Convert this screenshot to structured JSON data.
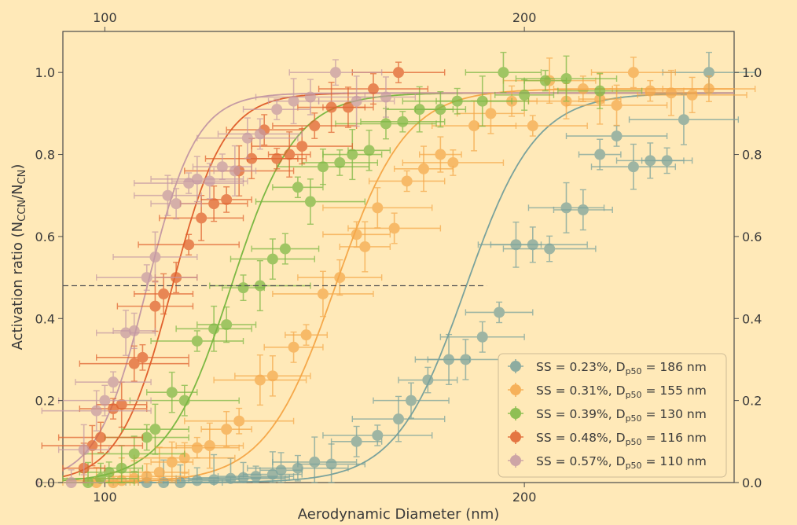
{
  "chart_data": {
    "type": "scatter",
    "xlabel": "Aerodynamic Diameter (nm)",
    "ylabel_main": "Activation ratio (N",
    "ylabel_sub1": "CCN",
    "ylabel_mid": "/N",
    "ylabel_sub2": "CN",
    "ylabel_end": ")",
    "xlim": [
      90,
      250
    ],
    "ylim": [
      0,
      1.1
    ],
    "xticks": [
      100,
      200
    ],
    "yticks": [
      0.0,
      0.2,
      0.4,
      0.6,
      0.8,
      1.0
    ],
    "ytick_labels": [
      "0.0",
      "0.2",
      "0.4",
      "0.6",
      "0.8",
      "1.0"
    ],
    "threshold_line": {
      "y": 0.48,
      "x_end": 191
    },
    "legend_placement": "lower-right",
    "series": [
      {
        "name": "SS = 0.23%, D",
        "dp_sub": "p50",
        "dp_text": " = 186 nm",
        "color": "#7aa29c",
        "d50": 186,
        "k": 0.12,
        "max": 0.95,
        "points": [
          [
            110,
            0
          ],
          [
            114,
            0
          ],
          [
            118,
            0
          ],
          [
            122,
            0.005
          ],
          [
            126,
            0.007
          ],
          [
            130,
            0.01
          ],
          [
            133,
            0.012
          ],
          [
            136,
            0.015
          ],
          [
            140,
            0.02
          ],
          [
            142,
            0.03
          ],
          [
            146,
            0.035
          ],
          [
            150,
            0.05
          ],
          [
            154,
            0.045
          ],
          [
            160,
            0.1
          ],
          [
            165,
            0.115
          ],
          [
            170,
            0.155
          ],
          [
            173,
            0.2
          ],
          [
            177,
            0.25
          ],
          [
            182,
            0.3
          ],
          [
            186,
            0.3
          ],
          [
            190,
            0.355
          ],
          [
            194,
            0.415
          ],
          [
            198,
            0.58
          ],
          [
            202,
            0.58
          ],
          [
            206,
            0.57
          ],
          [
            210,
            0.67
          ],
          [
            214,
            0.665
          ],
          [
            218,
            0.8
          ],
          [
            222,
            0.845
          ],
          [
            226,
            0.77
          ],
          [
            230,
            0.785
          ],
          [
            234,
            0.785
          ],
          [
            238,
            0.885
          ],
          [
            244,
            1.0
          ]
        ]
      },
      {
        "name": "SS = 0.31%, D",
        "dp_sub": "p50",
        "dp_text": " = 155 nm",
        "color": "#f5a84a",
        "d50": 155,
        "k": 0.12,
        "max": 0.96,
        "points": [
          [
            98,
            0
          ],
          [
            102,
            0
          ],
          [
            104,
            0.005
          ],
          [
            107,
            0.01
          ],
          [
            110,
            0.015
          ],
          [
            113,
            0.025
          ],
          [
            116,
            0.05
          ],
          [
            119,
            0.06
          ],
          [
            122,
            0.085
          ],
          [
            125,
            0.09
          ],
          [
            129,
            0.13
          ],
          [
            132,
            0.15
          ],
          [
            137,
            0.25
          ],
          [
            140,
            0.26
          ],
          [
            145,
            0.33
          ],
          [
            148,
            0.36
          ],
          [
            152,
            0.46
          ],
          [
            156,
            0.5
          ],
          [
            160,
            0.605
          ],
          [
            162,
            0.575
          ],
          [
            165,
            0.67
          ],
          [
            169,
            0.62
          ],
          [
            172,
            0.735
          ],
          [
            176,
            0.765
          ],
          [
            180,
            0.8
          ],
          [
            183,
            0.78
          ],
          [
            188,
            0.87
          ],
          [
            192,
            0.9
          ],
          [
            197,
            0.93
          ],
          [
            202,
            0.87
          ],
          [
            206,
            0.98
          ],
          [
            210,
            0.93
          ],
          [
            214,
            0.96
          ],
          [
            218,
            0.935
          ],
          [
            222,
            0.92
          ],
          [
            226,
            1.0
          ],
          [
            230,
            0.955
          ],
          [
            235,
            0.95
          ],
          [
            240,
            0.945
          ],
          [
            244,
            0.96
          ]
        ]
      },
      {
        "name": "SS = 0.39%, D",
        "dp_sub": "p50",
        "dp_text": " = 130 nm",
        "color": "#7cb843",
        "d50": 130,
        "k": 0.13,
        "max": 0.95,
        "points": [
          [
            96,
            0
          ],
          [
            99,
            0.01
          ],
          [
            101,
            0.025
          ],
          [
            104,
            0.035
          ],
          [
            107,
            0.07
          ],
          [
            110,
            0.11
          ],
          [
            112,
            0.13
          ],
          [
            116,
            0.22
          ],
          [
            119,
            0.2
          ],
          [
            122,
            0.345
          ],
          [
            126,
            0.375
          ],
          [
            129,
            0.385
          ],
          [
            133,
            0.475
          ],
          [
            137,
            0.48
          ],
          [
            140,
            0.545
          ],
          [
            143,
            0.57
          ],
          [
            146,
            0.72
          ],
          [
            149,
            0.685
          ],
          [
            152,
            0.77
          ],
          [
            156,
            0.78
          ],
          [
            159,
            0.8
          ],
          [
            163,
            0.81
          ],
          [
            167,
            0.875
          ],
          [
            171,
            0.88
          ],
          [
            175,
            0.91
          ],
          [
            180,
            0.91
          ],
          [
            184,
            0.93
          ],
          [
            190,
            0.93
          ],
          [
            195,
            1.0
          ],
          [
            200,
            0.945
          ],
          [
            205,
            0.98
          ],
          [
            210,
            0.985
          ],
          [
            218,
            0.955
          ]
        ]
      },
      {
        "name": "SS = 0.48%, D",
        "dp_sub": "p50",
        "dp_text": " = 116 nm",
        "color": "#e0612e",
        "d50": 116,
        "k": 0.16,
        "max": 0.95,
        "points": [
          [
            95,
            0.035
          ],
          [
            97,
            0.09
          ],
          [
            99,
            0.11
          ],
          [
            102,
            0.18
          ],
          [
            104,
            0.19
          ],
          [
            107,
            0.29
          ],
          [
            109,
            0.305
          ],
          [
            112,
            0.43
          ],
          [
            114,
            0.46
          ],
          [
            117,
            0.5
          ],
          [
            120,
            0.58
          ],
          [
            123,
            0.645
          ],
          [
            126,
            0.68
          ],
          [
            129,
            0.69
          ],
          [
            132,
            0.76
          ],
          [
            135,
            0.79
          ],
          [
            138,
            0.86
          ],
          [
            141,
            0.79
          ],
          [
            144,
            0.8
          ],
          [
            147,
            0.82
          ],
          [
            150,
            0.87
          ],
          [
            154,
            0.915
          ],
          [
            158,
            0.915
          ],
          [
            164,
            0.96
          ],
          [
            170,
            1.0
          ]
        ]
      },
      {
        "name": "SS = 0.57%, D",
        "dp_sub": "p50",
        "dp_text": " = 110 nm",
        "color": "#c59aa4",
        "d50": 110,
        "k": 0.17,
        "max": 0.95,
        "points": [
          [
            92,
            0
          ],
          [
            95,
            0.08
          ],
          [
            98,
            0.175
          ],
          [
            100,
            0.2
          ],
          [
            102,
            0.245
          ],
          [
            105,
            0.365
          ],
          [
            107,
            0.37
          ],
          [
            110,
            0.5
          ],
          [
            112,
            0.55
          ],
          [
            115,
            0.7
          ],
          [
            117,
            0.68
          ],
          [
            120,
            0.73
          ],
          [
            122,
            0.74
          ],
          [
            125,
            0.735
          ],
          [
            128,
            0.77
          ],
          [
            131,
            0.76
          ],
          [
            134,
            0.84
          ],
          [
            137,
            0.85
          ],
          [
            141,
            0.91
          ],
          [
            145,
            0.93
          ],
          [
            149,
            0.94
          ],
          [
            155,
            1.0
          ],
          [
            160,
            0.93
          ],
          [
            167,
            0.94
          ]
        ]
      }
    ]
  }
}
